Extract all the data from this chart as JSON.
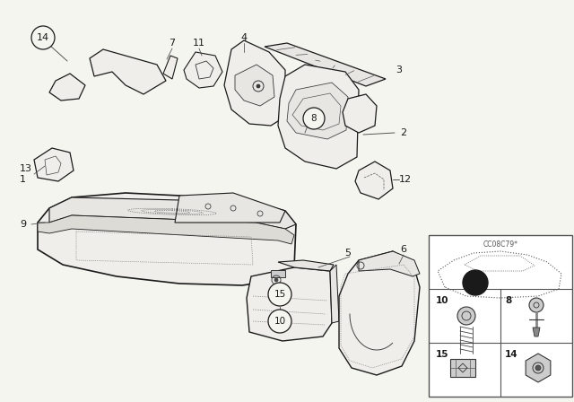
{
  "bg_color": "#f5f5f0",
  "fig_width": 6.4,
  "fig_height": 4.48,
  "dpi": 100,
  "lc": "#1a1a1a",
  "fc_light": "#f0eeea",
  "fc_mid": "#e8e6e2",
  "code_text": "CC08C79*"
}
